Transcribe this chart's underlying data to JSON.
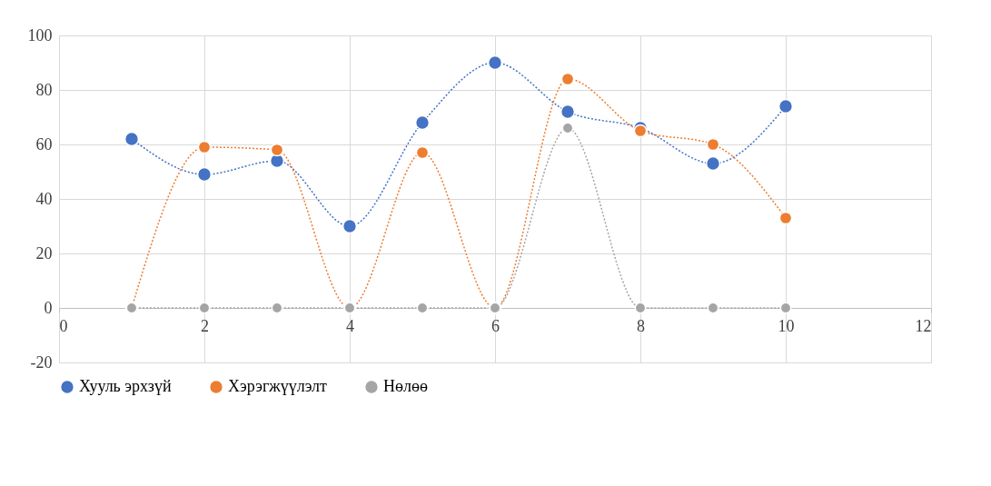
{
  "chart_data": {
    "type": "line",
    "x": [
      1,
      2,
      3,
      4,
      5,
      6,
      7,
      8,
      9,
      10
    ],
    "series": [
      {
        "name": "Хууль эрхзүй",
        "color": "#4472c4",
        "values": [
          62,
          49,
          54,
          30,
          68,
          90,
          72,
          66,
          53,
          74
        ]
      },
      {
        "name": "Хэрэгжүүлэлт",
        "color": "#ed7d31",
        "values": [
          0,
          59,
          58,
          0,
          57,
          0,
          84,
          65,
          60,
          33
        ]
      },
      {
        "name": "Нөлөө",
        "color": "#a5a5a5",
        "values": [
          0,
          0,
          0,
          0,
          0,
          0,
          66,
          0,
          0,
          0
        ]
      }
    ],
    "xlim": [
      0,
      12
    ],
    "xticks": [
      0,
      2,
      4,
      6,
      8,
      10,
      12
    ],
    "ylim": [
      -20,
      100
    ],
    "yticks": [
      -20,
      0,
      20,
      40,
      60,
      80,
      100
    ],
    "grid": true,
    "legend": "bottom",
    "marker": "circle",
    "line_style": "dotted"
  }
}
